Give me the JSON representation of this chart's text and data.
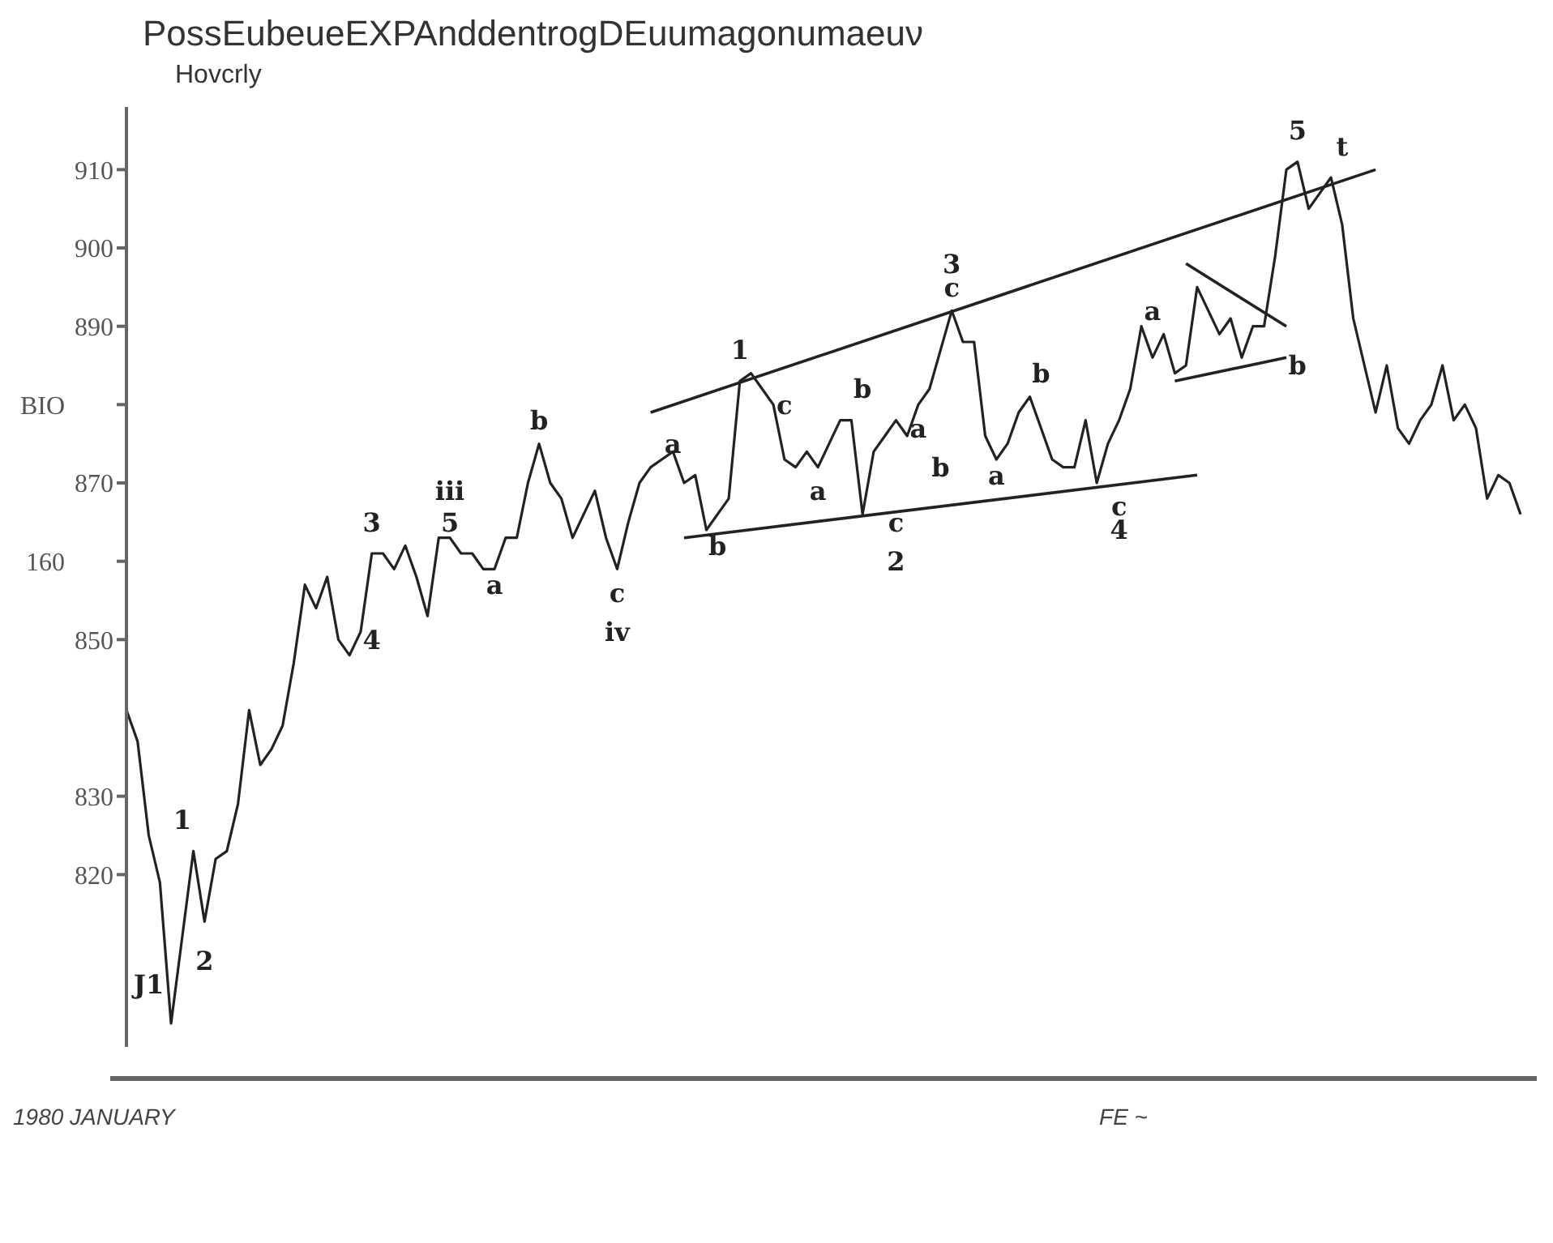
{
  "chart_data": {
    "type": "line",
    "title": "PossEubeueEXPAnddentrogDEuumagonumaeuν",
    "subtitle": "Hovcrly",
    "categories": [
      null,
      null,
      null,
      null,
      null,
      null,
      null,
      null,
      null,
      null,
      null,
      null,
      null,
      null,
      null,
      null,
      null,
      null,
      null,
      null,
      null,
      null,
      null,
      null,
      null,
      null,
      null,
      null,
      null,
      null,
      null,
      null,
      null,
      null,
      null,
      null,
      null,
      null,
      null,
      null,
      null,
      null,
      null,
      null,
      null,
      null,
      null,
      null,
      null,
      null,
      null,
      null,
      null,
      null,
      null,
      null,
      null,
      null,
      null,
      null,
      null,
      null,
      null,
      null,
      null,
      null,
      null,
      null,
      null,
      null,
      null,
      null,
      null,
      null,
      null,
      null,
      null,
      null,
      null,
      null,
      null,
      null,
      null,
      null,
      null,
      null,
      null,
      null,
      null,
      null,
      null,
      null,
      null,
      null,
      null,
      null,
      null,
      null,
      null,
      null,
      null,
      null,
      null,
      null,
      null,
      null,
      null,
      null,
      null,
      null,
      null,
      null,
      null,
      null,
      null,
      null,
      null,
      null,
      null,
      null,
      null,
      null,
      null,
      null,
      null,
      null
    ],
    "ylim": [
      798,
      918
    ],
    "yticks": [
      820,
      830,
      850,
      {
        "value": 860,
        "label": null
      },
      870,
      {
        "value": 880,
        "label": null
      },
      890,
      900,
      910
    ],
    "tick_labels": "y",
    "grid": false,
    "marker": "none",
    "line_style": "solid",
    "series": [
      {
        "color": "#222222",
        "values": [
          841,
          837,
          825,
          819,
          801,
          812,
          823,
          814,
          822,
          823,
          829,
          841,
          834,
          836,
          839,
          847,
          857,
          854,
          858,
          850,
          848,
          851,
          861,
          861,
          859,
          862,
          858,
          853,
          863,
          863,
          861,
          861,
          859,
          859,
          863,
          863,
          870,
          875,
          870,
          868,
          863,
          866,
          869,
          863,
          859,
          865,
          870,
          872,
          873,
          874,
          870,
          871,
          864,
          866,
          868,
          883,
          884,
          882,
          880,
          873,
          872,
          874,
          872,
          875,
          878,
          878,
          866,
          874,
          876,
          878,
          876,
          880,
          882,
          887,
          892,
          888,
          888,
          876,
          873,
          875,
          879,
          881,
          877,
          873,
          872,
          872,
          878,
          870,
          875,
          878,
          882,
          890,
          886,
          889,
          884,
          885,
          895,
          892,
          889,
          891,
          886,
          890,
          890,
          899,
          910,
          911,
          905,
          907,
          909,
          903,
          891,
          885,
          879,
          885,
          877,
          875,
          878,
          880,
          885,
          878,
          880,
          877,
          868,
          871,
          870,
          866
        ]
      },
      {
        "color": "#222222",
        "values": [
          null,
          null,
          null,
          null,
          null,
          null,
          null,
          null,
          null,
          null,
          null,
          null,
          null,
          null,
          null,
          null,
          null,
          null,
          null,
          null,
          null,
          null,
          null,
          null,
          null,
          null,
          null,
          null,
          null,
          null,
          null,
          null,
          null,
          null,
          null,
          null,
          null,
          null,
          null,
          null,
          null,
          null,
          null,
          null,
          null,
          null,
          null,
          879,
          null,
          null,
          null,
          null,
          null,
          null,
          null,
          null,
          null,
          null,
          null,
          null,
          null,
          null,
          null,
          null,
          null,
          null,
          null,
          null,
          null,
          null,
          null,
          null,
          null,
          null,
          null,
          null,
          null,
          null,
          null,
          null,
          null,
          null,
          null,
          null,
          null,
          null,
          null,
          null,
          null,
          null,
          null,
          null,
          null,
          null,
          null,
          null,
          null,
          null,
          null,
          null,
          null,
          null,
          null,
          null,
          null,
          null,
          null,
          null,
          null,
          null,
          null,
          null,
          910,
          null,
          null,
          null,
          null,
          null,
          null,
          null,
          null,
          null,
          null,
          null,
          null,
          null
        ]
      },
      {
        "color": "#222222",
        "values": [
          null,
          null,
          null,
          null,
          null,
          null,
          null,
          null,
          null,
          null,
          null,
          null,
          null,
          null,
          null,
          null,
          null,
          null,
          null,
          null,
          null,
          null,
          null,
          null,
          null,
          null,
          null,
          null,
          null,
          null,
          null,
          null,
          null,
          null,
          null,
          null,
          null,
          null,
          null,
          null,
          null,
          null,
          null,
          null,
          null,
          null,
          null,
          null,
          null,
          null,
          863,
          null,
          null,
          null,
          null,
          null,
          null,
          null,
          null,
          null,
          null,
          null,
          null,
          null,
          null,
          null,
          null,
          null,
          null,
          null,
          null,
          null,
          null,
          null,
          null,
          null,
          null,
          null,
          null,
          null,
          null,
          null,
          null,
          null,
          null,
          null,
          null,
          null,
          null,
          null,
          null,
          null,
          null,
          null,
          null,
          null,
          871,
          null,
          null,
          null,
          null,
          null,
          null,
          null,
          null,
          null,
          null,
          null,
          null,
          null,
          null,
          null,
          null,
          null,
          null,
          null,
          null,
          null,
          null,
          null,
          null,
          null,
          null,
          null,
          null,
          null
        ]
      },
      {
        "color": "#222222",
        "values": [
          null,
          null,
          null,
          null,
          null,
          null,
          null,
          null,
          null,
          null,
          null,
          null,
          null,
          null,
          null,
          null,
          null,
          null,
          null,
          null,
          null,
          null,
          null,
          null,
          null,
          null,
          null,
          null,
          null,
          null,
          null,
          null,
          null,
          null,
          null,
          null,
          null,
          null,
          null,
          null,
          null,
          null,
          null,
          null,
          null,
          null,
          null,
          null,
          null,
          null,
          null,
          null,
          null,
          null,
          null,
          null,
          null,
          null,
          null,
          null,
          null,
          null,
          null,
          null,
          null,
          null,
          null,
          null,
          null,
          null,
          null,
          null,
          null,
          null,
          null,
          null,
          null,
          null,
          null,
          null,
          null,
          null,
          null,
          null,
          null,
          null,
          null,
          null,
          null,
          null,
          null,
          null,
          null,
          null,
          null,
          898,
          null,
          null,
          null,
          null,
          null,
          null,
          null,
          null,
          890,
          null,
          null,
          null,
          null,
          null,
          null,
          null,
          null,
          null,
          null,
          null,
          null,
          null,
          null,
          null,
          null,
          null,
          null,
          null,
          null,
          null
        ]
      },
      {
        "color": "#222222",
        "values": [
          null,
          null,
          null,
          null,
          null,
          null,
          null,
          null,
          null,
          null,
          null,
          null,
          null,
          null,
          null,
          null,
          null,
          null,
          null,
          null,
          null,
          null,
          null,
          null,
          null,
          null,
          null,
          null,
          null,
          null,
          null,
          null,
          null,
          null,
          null,
          null,
          null,
          null,
          null,
          null,
          null,
          null,
          null,
          null,
          null,
          null,
          null,
          null,
          null,
          null,
          null,
          null,
          null,
          null,
          null,
          null,
          null,
          null,
          null,
          null,
          null,
          null,
          null,
          null,
          null,
          null,
          null,
          null,
          null,
          null,
          null,
          null,
          null,
          null,
          null,
          null,
          null,
          null,
          null,
          null,
          null,
          null,
          null,
          null,
          null,
          null,
          null,
          null,
          null,
          null,
          null,
          null,
          null,
          null,
          883,
          null,
          null,
          null,
          null,
          null,
          null,
          null,
          null,
          null,
          886,
          null,
          null,
          null,
          null,
          null,
          null,
          null,
          null,
          null,
          null,
          null,
          null,
          null,
          null,
          null,
          null,
          null,
          null,
          null,
          null,
          null
        ]
      }
    ],
    "annotations": [
      "3",
      "4",
      "iii",
      "5",
      "a",
      "b",
      "c",
      "iv",
      "a",
      "b",
      "1",
      "c",
      "a",
      "b",
      "a",
      "b",
      "c",
      "2",
      "3",
      "c",
      "a",
      "b",
      "c",
      "4",
      "a",
      "b",
      "5",
      "t",
      "1",
      "2",
      "J1",
      "160",
      "BIO",
      "1980 JANUARY",
      "FE ~"
    ]
  }
}
